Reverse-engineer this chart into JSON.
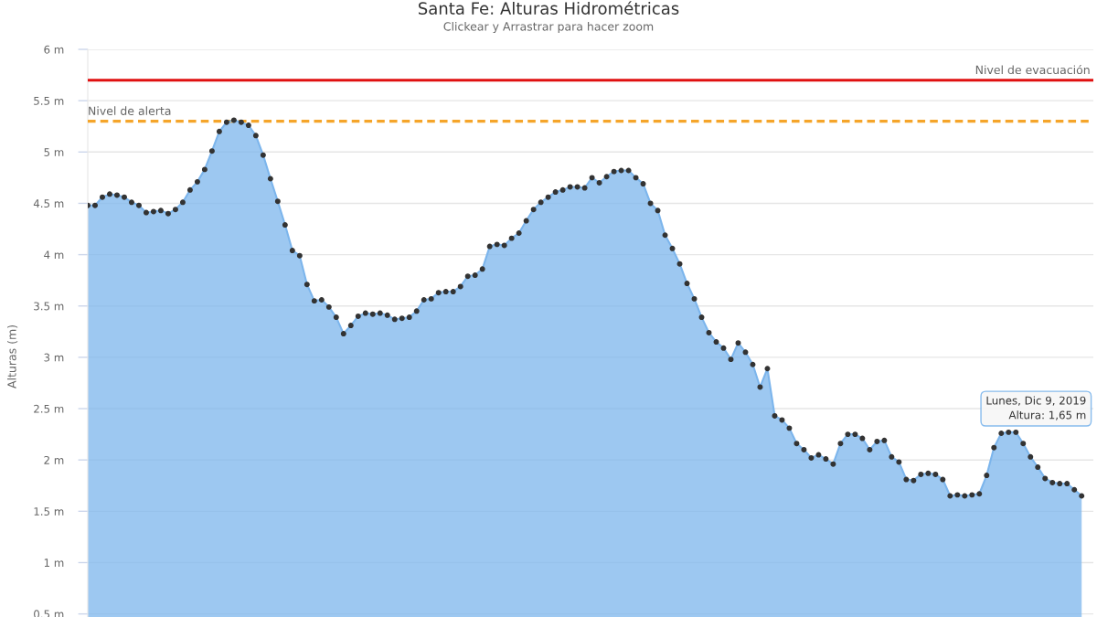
{
  "chart_data": {
    "type": "area",
    "title": "Santa Fe: Alturas Hidrométricas",
    "subtitle": "Clickear y Arrastrar para hacer zoom",
    "ylabel": "Alturas (m)",
    "categories": [
      null,
      null,
      null,
      null,
      null,
      null,
      null,
      null,
      null,
      null,
      null,
      null,
      null,
      null,
      null,
      null,
      null,
      null,
      null,
      null,
      null,
      null,
      null,
      null,
      null,
      null,
      null,
      null,
      null,
      null,
      null,
      null,
      null,
      null,
      null,
      null,
      null,
      null,
      null,
      null,
      null,
      null,
      null,
      null,
      null,
      null,
      null,
      null,
      null,
      null,
      null,
      null,
      null,
      null,
      null,
      null,
      null,
      null,
      null,
      null,
      null,
      null,
      null,
      null,
      null,
      null,
      null,
      null,
      null,
      null,
      null,
      null,
      null,
      null,
      null,
      null,
      null,
      null,
      null,
      null,
      null,
      null,
      null,
      null,
      null,
      null,
      null,
      null,
      null,
      null,
      null,
      null,
      null,
      null,
      null,
      null,
      null,
      null,
      null,
      null,
      null,
      null,
      null,
      null,
      null,
      null,
      null,
      null,
      null,
      null,
      null,
      null,
      null,
      null,
      null,
      null,
      null,
      null,
      null,
      null,
      null,
      null,
      null,
      null,
      null,
      null,
      null,
      null,
      null,
      null,
      null,
      null,
      null,
      null,
      null,
      null,
      null
    ],
    "series": [
      {
        "color": "#7cb5ec",
        "values": [
          4.48,
          4.48,
          4.56,
          4.59,
          4.58,
          4.56,
          4.51,
          4.48,
          4.41,
          4.42,
          4.43,
          4.4,
          4.44,
          4.51,
          4.63,
          4.71,
          4.83,
          5.01,
          5.2,
          5.29,
          5.31,
          5.29,
          5.26,
          5.16,
          4.97,
          4.74,
          4.52,
          4.29,
          4.04,
          3.99,
          3.71,
          3.55,
          3.56,
          3.49,
          3.39,
          3.23,
          3.31,
          3.4,
          3.43,
          3.42,
          3.43,
          3.41,
          3.37,
          3.38,
          3.39,
          3.45,
          3.56,
          3.57,
          3.63,
          3.64,
          3.64,
          3.69,
          3.79,
          3.8,
          3.86,
          4.08,
          4.1,
          4.09,
          4.16,
          4.21,
          4.33,
          4.44,
          4.51,
          4.56,
          4.61,
          4.63,
          4.66,
          4.66,
          4.65,
          4.75,
          4.7,
          4.76,
          4.81,
          4.82,
          4.82,
          4.75,
          4.69,
          4.5,
          4.43,
          4.19,
          4.06,
          3.91,
          3.72,
          3.57,
          3.39,
          3.24,
          3.15,
          3.09,
          2.98,
          3.14,
          3.05,
          2.93,
          2.71,
          2.89,
          2.43,
          2.39,
          2.31,
          2.16,
          2.1,
          2.02,
          2.05,
          2.01,
          1.96,
          2.16,
          2.25,
          2.25,
          2.21,
          2.1,
          2.18,
          2.19,
          2.03,
          1.98,
          1.81,
          1.8,
          1.86,
          1.87,
          1.86,
          1.81,
          1.65,
          1.66,
          1.65,
          1.66,
          1.67,
          1.85,
          2.12,
          2.26,
          2.27,
          2.27,
          2.16,
          2.03,
          1.93,
          1.82,
          1.78,
          1.77,
          1.77,
          1.71,
          1.65
        ]
      }
    ],
    "ylim": [
      0.47,
      6
    ],
    "yticks": [
      {
        "value": 0.5,
        "label": "0.5 m"
      },
      {
        "value": 1,
        "label": "1 m"
      },
      {
        "value": 1.5,
        "label": "1.5 m"
      },
      {
        "value": 2,
        "label": "2 m"
      },
      {
        "value": 2.5,
        "label": "2.5 m"
      },
      {
        "value": 3,
        "label": "3 m"
      },
      {
        "value": 3.5,
        "label": "3.5 m"
      },
      {
        "value": 4,
        "label": "4 m"
      },
      {
        "value": 4.5,
        "label": "4.5 m"
      },
      {
        "value": 5,
        "label": "5 m"
      },
      {
        "value": 5.5,
        "label": "5.5 m"
      },
      {
        "value": 6,
        "label": "6 m"
      }
    ],
    "grid": "y",
    "marker": "circle",
    "tick_labels": "y",
    "ref_lines": [
      {
        "axis": "y",
        "value": 5.7,
        "label": "Nivel de evacuación",
        "color": "#e01010",
        "line_style": "solid"
      },
      {
        "axis": "y",
        "value": 5.3,
        "label": "Nivel de alerta",
        "color": "#f5a52a",
        "line_style": "dashed"
      }
    ],
    "annotations": [
      "Lunes, Dic 9, 2019\nAltura: 1,65 m"
    ]
  }
}
